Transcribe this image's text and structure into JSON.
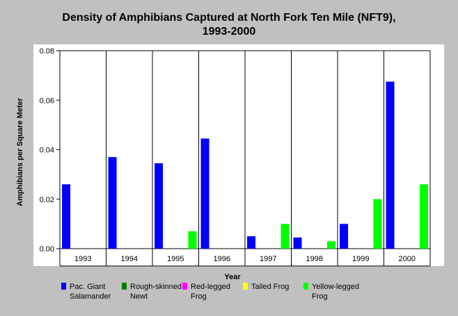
{
  "chart_data": {
    "type": "bar",
    "title": "Density of Amphibians Captured at North Fork Ten Mile (NFT9),",
    "subtitle": "1993-2000",
    "xlabel": "Year",
    "ylabel": "Amphibians per Square Meter",
    "categories": [
      "1993",
      "1994",
      "1995",
      "1996",
      "1997",
      "1998",
      "1999",
      "2000"
    ],
    "ylim": [
      0,
      0.08
    ],
    "yticks": [
      "0.00",
      "0.02",
      "0.04",
      "0.06",
      "0.08"
    ],
    "ytick_values": [
      0,
      0.02,
      0.04,
      0.06,
      0.08
    ],
    "grid": "vertical category separators",
    "legend_position": "bottom",
    "series": [
      {
        "name": "Pac. Giant Salamander",
        "legend_lines": [
          "Pac. Giant",
          "Salamander"
        ],
        "color": "#0000ff",
        "values": [
          0.026,
          0.037,
          0.0345,
          0.0445,
          0.005,
          0.0045,
          0.01,
          0.0675
        ]
      },
      {
        "name": "Rough-skinned Newt",
        "legend_lines": [
          "Rough-skinned",
          "Newt"
        ],
        "color": "#008000",
        "values": [
          0,
          0,
          0,
          0,
          0,
          0,
          0,
          0
        ]
      },
      {
        "name": "Red-legged Frog",
        "legend_lines": [
          "Red-legged",
          "Frog"
        ],
        "color": "#ff00ff",
        "values": [
          0,
          0,
          0,
          0,
          0,
          0,
          0,
          0
        ]
      },
      {
        "name": "Tailed Frog",
        "legend_lines": [
          "Tailed Frog"
        ],
        "color": "#ffff00",
        "values": [
          0,
          0,
          0,
          0,
          0,
          0,
          0,
          0
        ]
      },
      {
        "name": "Yellow-legged Frog",
        "legend_lines": [
          "Yellow-legged",
          "Frog"
        ],
        "color": "#00ff00",
        "values": [
          0,
          0,
          0.007,
          0,
          0.01,
          0.003,
          0.02,
          0.026
        ]
      }
    ]
  }
}
